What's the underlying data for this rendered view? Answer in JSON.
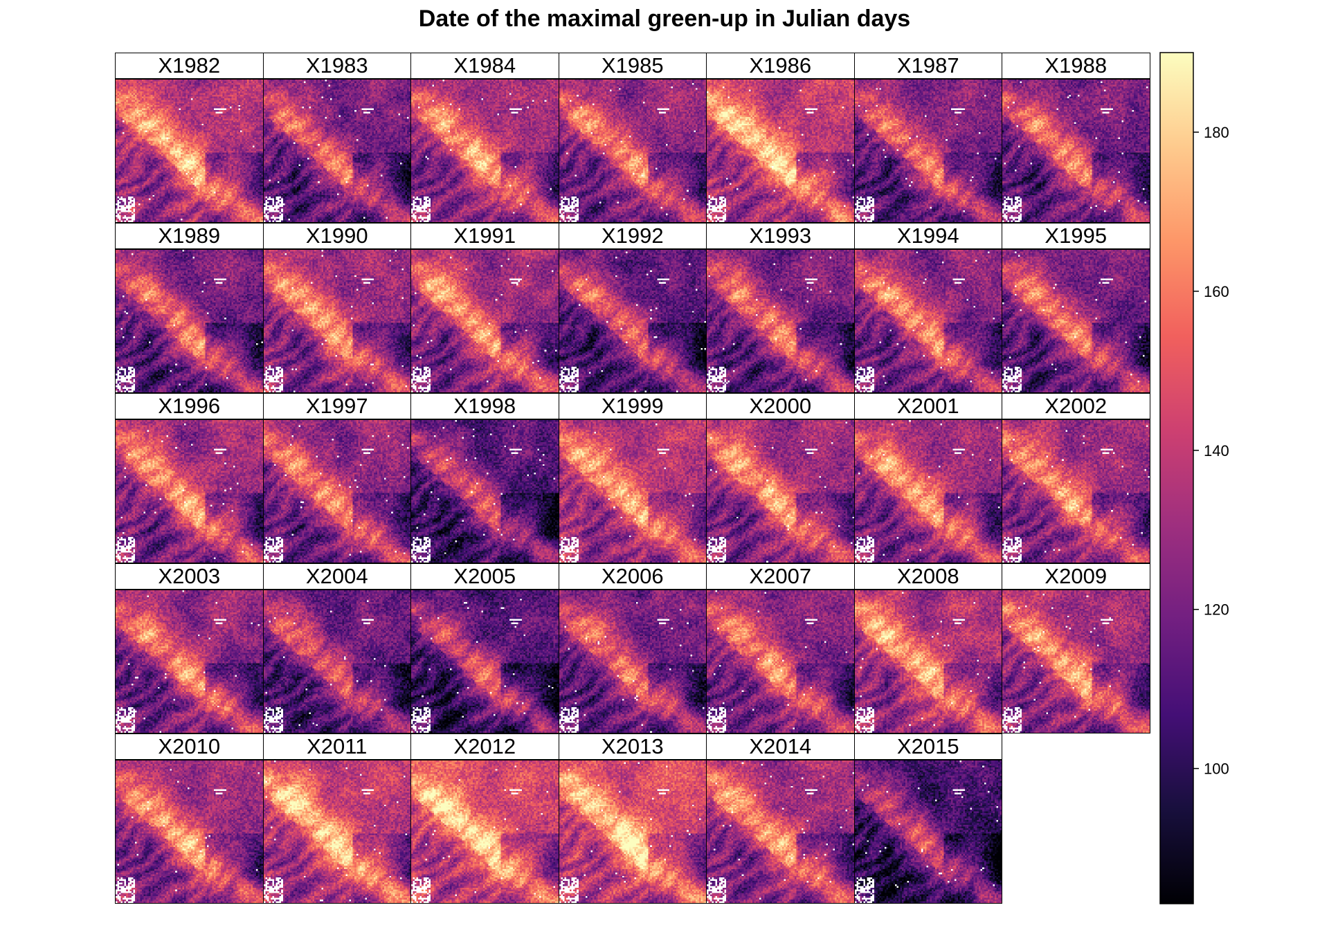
{
  "chart_data": {
    "type": "heatmap",
    "title": "Date of the maximal green-up in Julian days",
    "panels": [
      "X1982",
      "X1983",
      "X1984",
      "X1985",
      "X1986",
      "X1987",
      "X1988",
      "X1989",
      "X1990",
      "X1991",
      "X1992",
      "X1993",
      "X1994",
      "X1995",
      "X1996",
      "X1997",
      "X1998",
      "X1999",
      "X2000",
      "X2001",
      "X2002",
      "X2003",
      "X2004",
      "X2005",
      "X2006",
      "X2007",
      "X2008",
      "X2009",
      "X2010",
      "X2011",
      "X2012",
      "X2013",
      "X2014",
      "X2015"
    ],
    "panel_mean_level": [
      0.6,
      0.45,
      0.55,
      0.5,
      0.65,
      0.45,
      0.45,
      0.45,
      0.55,
      0.55,
      0.4,
      0.45,
      0.5,
      0.45,
      0.55,
      0.5,
      0.35,
      0.6,
      0.55,
      0.55,
      0.55,
      0.5,
      0.4,
      0.35,
      0.45,
      0.5,
      0.6,
      0.55,
      0.55,
      0.65,
      0.7,
      0.7,
      0.55,
      0.3
    ],
    "layout": {
      "columns": 7,
      "rows": 5
    },
    "colorscale": {
      "name": "magma",
      "range": [
        83,
        190
      ],
      "ticks": [
        100,
        120,
        140,
        160,
        180
      ],
      "colors": [
        "#000004",
        "#180f3d",
        "#440f76",
        "#721f81",
        "#9e2f7f",
        "#cd4071",
        "#f1605d",
        "#fd9668",
        "#feca8d",
        "#fcfdbf"
      ]
    },
    "missing_color": "#ffffff"
  }
}
